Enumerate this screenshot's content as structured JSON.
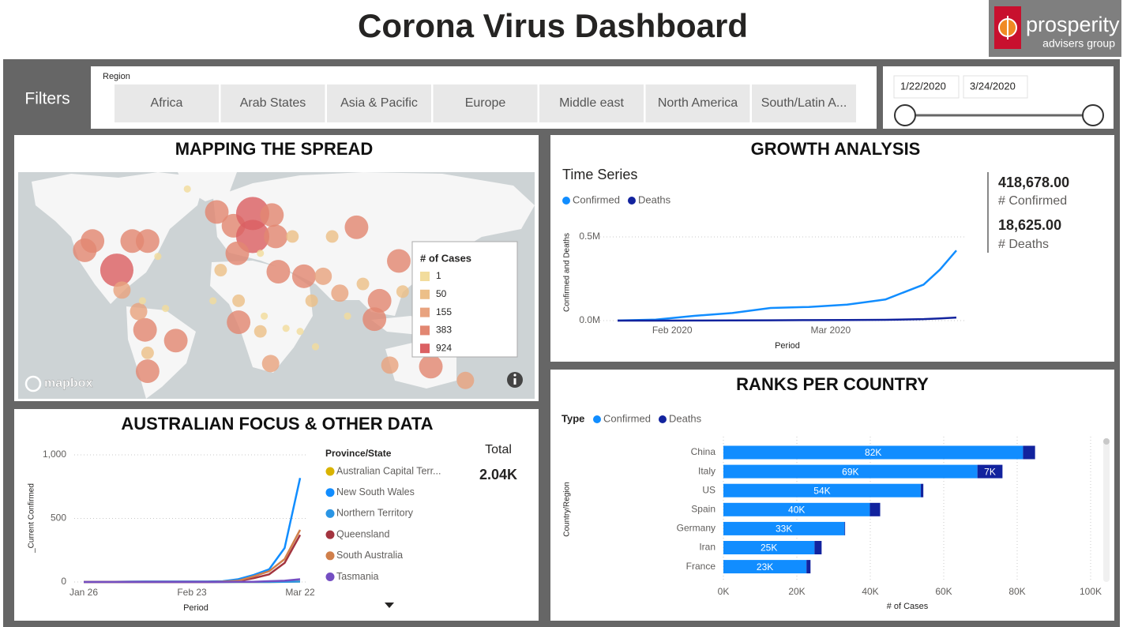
{
  "header": {
    "title": "Corona Virus Dashboard",
    "logo": {
      "name": "prosperity",
      "tagline": "advisers group"
    }
  },
  "filters": {
    "label": "Filters",
    "region_label": "Region",
    "regions": [
      "Africa",
      "Arab States",
      "Asia & Pacific",
      "Europe",
      "Middle east",
      "North America",
      "South/Latin A..."
    ],
    "date_start": "1/22/2020",
    "date_end": "3/24/2020"
  },
  "cards": [
    {
      "value": "418,678.00",
      "label": "# Confirmed"
    },
    {
      "value": "18,625.00",
      "label": "# Deaths"
    },
    {
      "label": "Total",
      "value": "2.04K"
    }
  ],
  "chart_data": [
    {
      "type": "bubble_map",
      "title": "MAPPING THE SPREAD",
      "legend_title": "# of Cases",
      "attribution": "mapbox",
      "legend": [
        {
          "value": 1,
          "color": "#f2dc9c"
        },
        {
          "value": 50,
          "color": "#ecbf88"
        },
        {
          "value": 155,
          "color": "#e8a37f"
        },
        {
          "value": 383,
          "color": "#e28772"
        },
        {
          "value": 924,
          "color": "#db6063"
        }
      ],
      "xlim": [
        -173,
        230
      ],
      "ylim": [
        -56,
        92
      ],
      "lon": [
        -96,
        -121,
        -115,
        -84,
        -72,
        -92,
        -18,
        -5,
        10,
        25,
        10,
        28,
        -2,
        30,
        50,
        65,
        91,
        78,
        109,
        105,
        124,
        -50,
        -72,
        -74,
        -79,
        -1,
        24,
        117,
        149,
        176,
        -41,
        -64,
        -76,
        -58,
        -21,
        16,
        36,
        47,
        84,
        19,
        59,
        72,
        41,
        16,
        56,
        -72,
        96,
        127,
        -1,
        -15
      ],
      "lat": [
        28,
        41,
        47,
        47,
        47,
        15,
        66,
        57,
        65,
        64,
        50,
        50,
        39,
        27,
        24,
        24,
        56,
        13,
        8,
        -4,
        34,
        -18,
        -38,
        -11,
        1,
        -6,
        -33,
        -34,
        -35,
        -44,
        81,
        37,
        8,
        3,
        8,
        39,
        -10,
        -12,
        -2,
        -2,
        -22,
        50,
        50,
        -12,
        8,
        -26,
        19,
        14,
        8,
        28
      ],
      "cases": [
        924,
        383,
        383,
        383,
        383,
        155,
        383,
        383,
        924,
        383,
        924,
        383,
        383,
        383,
        383,
        155,
        383,
        155,
        383,
        383,
        383,
        383,
        383,
        383,
        155,
        383,
        155,
        155,
        383,
        155,
        1,
        1,
        1,
        1,
        1,
        1,
        1,
        1,
        1,
        1,
        1,
        50,
        50,
        50,
        50,
        50,
        50,
        50,
        50,
        50
      ]
    },
    {
      "type": "line",
      "title": "GROWTH ANALYSIS",
      "subtitle": "Time Series",
      "x_label": "Period",
      "y_label": "Confirmed and Deaths",
      "x": [
        "2020-01-22",
        "2020-01-29",
        "2020-02-05",
        "2020-02-12",
        "2020-02-19",
        "2020-02-26",
        "2020-03-04",
        "2020-03-11",
        "2020-03-18",
        "2020-03-21",
        "2020-03-24"
      ],
      "xlim": [
        "2020-01-22",
        "2020-03-24"
      ],
      "xticks": [
        {
          "value": "2020-02-01",
          "label": "Feb 2020"
        },
        {
          "value": "2020-03-01",
          "label": "Mar 2020"
        }
      ],
      "ylim": [
        0,
        500000
      ],
      "yticks": [
        {
          "value": 0,
          "label": "0.0M"
        },
        {
          "value": 500000,
          "label": "0.5M"
        }
      ],
      "grid": true,
      "series": [
        {
          "name": "Confirmed",
          "color": "#118dff",
          "values": [
            555,
            6165,
            28276,
            45221,
            75641,
            81397,
            95120,
            125865,
            214910,
            304528,
            418678
          ]
        },
        {
          "name": "Deaths",
          "color": "#12239e",
          "values": [
            17,
            133,
            565,
            1118,
            2122,
            2770,
            3254,
            4615,
            8733,
            12973,
            18625
          ]
        }
      ]
    },
    {
      "type": "line",
      "title": "AUSTRALIAN FOCUS & OTHER DATA",
      "x_label": "Period",
      "y_label": "_Current Confirmed",
      "legend_title": "Province/State",
      "categories": [
        "Jan 26",
        null,
        null,
        null,
        null,
        null,
        null,
        "Feb 23",
        null,
        null,
        null,
        null,
        null,
        null,
        "Mar 22"
      ],
      "ylim": [
        0,
        1000
      ],
      "yticks": [
        0,
        500,
        {
          "value": 1000,
          "label": "1,000"
        }
      ],
      "grid": true,
      "series": [
        {
          "name": "Australian Capital Terr...",
          "color": "#d9b300",
          "values": [
            0,
            0,
            0,
            0,
            0,
            0,
            0,
            0,
            0,
            0,
            0,
            0,
            0,
            1,
            4
          ]
        },
        {
          "name": "New South Wales",
          "color": "#118dff",
          "values": [
            0,
            1,
            2,
            3,
            4,
            4,
            4,
            4,
            4,
            6,
            22,
            55,
            100,
            267,
            818
          ]
        },
        {
          "name": "Northern Territory",
          "color": "#2a95e4",
          "values": [
            0,
            0,
            0,
            0,
            0,
            0,
            0,
            0,
            0,
            0,
            0,
            0,
            0,
            1,
            3
          ]
        },
        {
          "name": "Queensland",
          "color": "#a3343f",
          "values": [
            0,
            0,
            0,
            0,
            0,
            0,
            0,
            0,
            0,
            2,
            8,
            30,
            60,
            150,
            370
          ]
        },
        {
          "name": "South Australia",
          "color": "#d07f4b",
          "values": [
            0,
            0,
            0,
            0,
            0,
            0,
            0,
            0,
            0,
            3,
            10,
            45,
            85,
            180,
            410
          ]
        },
        {
          "name": "Tasmania",
          "color": "#744ec2",
          "values": [
            0,
            0,
            0,
            0,
            0,
            0,
            0,
            0,
            0,
            0,
            1,
            2,
            6,
            10,
            22
          ]
        }
      ]
    },
    {
      "type": "hbar_stacked",
      "title": "RANKS PER COUNTRY",
      "x_label": "# of Cases",
      "y_label": "Country/Region",
      "legend_title": "Type",
      "categories": [
        "China",
        "Italy",
        "US",
        "Spain",
        "Germany",
        "Iran",
        "France"
      ],
      "xlim": [
        0,
        100000
      ],
      "xticks": [
        {
          "value": 0,
          "label": "0K"
        },
        {
          "value": 20000,
          "label": "20K"
        },
        {
          "value": 40000,
          "label": "40K"
        },
        {
          "value": 60000,
          "label": "60K"
        },
        {
          "value": 80000,
          "label": "80K"
        },
        {
          "value": 100000,
          "label": "100K"
        }
      ],
      "grid": true,
      "series": [
        {
          "name": "Confirmed",
          "color": "#118dff",
          "values": [
            81591,
            69176,
            53740,
            39885,
            32986,
            24811,
            22622
          ],
          "value_labels": [
            "82K",
            "69K",
            "54K",
            "40K",
            "33K",
            "25K",
            "23K"
          ]
        },
        {
          "name": "Deaths",
          "color": "#12239e",
          "values": [
            3281,
            6820,
            706,
            2808,
            157,
            1934,
            1102
          ],
          "value_labels": [
            null,
            "7K",
            null,
            null,
            null,
            null,
            null
          ]
        }
      ]
    }
  ]
}
